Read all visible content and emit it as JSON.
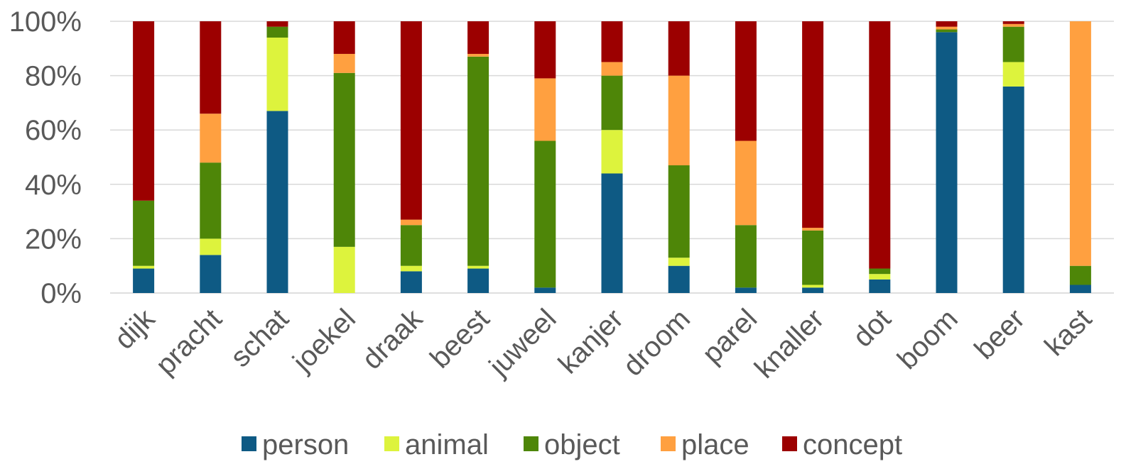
{
  "chart_data": {
    "type": "bar",
    "stacked": true,
    "percent": true,
    "categories": [
      "dijk",
      "pracht",
      "schat",
      "joekel",
      "draak",
      "beest",
      "juweel",
      "kanjer",
      "droom",
      "parel",
      "knaller",
      "dot",
      "boom",
      "beer",
      "kast"
    ],
    "series": [
      {
        "name": "person",
        "color": "#0E5A84",
        "values": [
          9,
          14,
          67,
          0,
          8,
          9,
          2,
          44,
          10,
          2,
          2,
          5,
          96,
          76,
          3
        ]
      },
      {
        "name": "animal",
        "color": "#DDF33D",
        "values": [
          1,
          6,
          27,
          17,
          2,
          1,
          0,
          16,
          3,
          0,
          1,
          2,
          0,
          9,
          0
        ]
      },
      {
        "name": "object",
        "color": "#4E8608",
        "values": [
          24,
          28,
          4,
          64,
          15,
          77,
          54,
          20,
          34,
          23,
          20,
          2,
          1,
          13,
          7
        ]
      },
      {
        "name": "place",
        "color": "#FFA040",
        "values": [
          0,
          18,
          0,
          7,
          2,
          1,
          23,
          5,
          33,
          31,
          1,
          0,
          1,
          1,
          90
        ]
      },
      {
        "name": "concept",
        "color": "#9C0000",
        "values": [
          66,
          34,
          2,
          12,
          73,
          12,
          21,
          15,
          20,
          44,
          76,
          91,
          2,
          1,
          0
        ]
      }
    ],
    "ylim": [
      0,
      100
    ],
    "yticks": [
      "0%",
      "20%",
      "40%",
      "60%",
      "80%",
      "100%"
    ],
    "grid": true,
    "legend": "bottom"
  }
}
